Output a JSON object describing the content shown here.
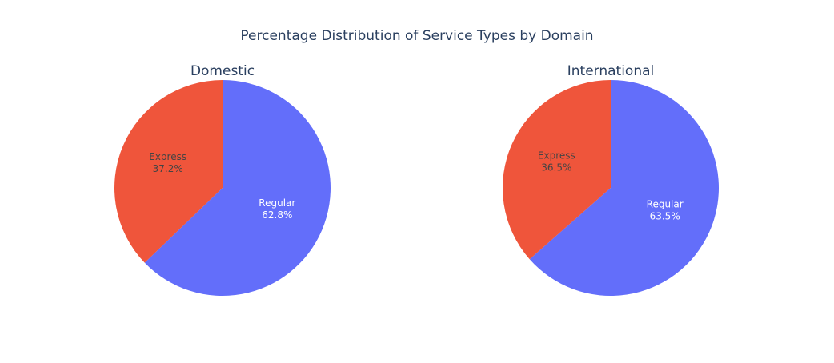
{
  "chart_data": {
    "type": "pie",
    "title": "Percentage Distribution of Service Types by Domain",
    "subplots": [
      {
        "name": "Domestic",
        "slices": [
          {
            "label": "Regular",
            "value": 62.8,
            "text": "62.8%",
            "color": "#636efa"
          },
          {
            "label": "Express",
            "value": 37.2,
            "text": "37.2%",
            "color": "#ef553b"
          }
        ]
      },
      {
        "name": "International",
        "slices": [
          {
            "label": "Regular",
            "value": 63.5,
            "text": "63.5%",
            "color": "#636efa"
          },
          {
            "label": "Express",
            "value": 36.5,
            "text": "36.5%",
            "color": "#ef553b"
          }
        ]
      }
    ],
    "colors": {
      "Regular": "#636efa",
      "Express": "#ef553b",
      "title_text": "#2a3f5f"
    }
  }
}
